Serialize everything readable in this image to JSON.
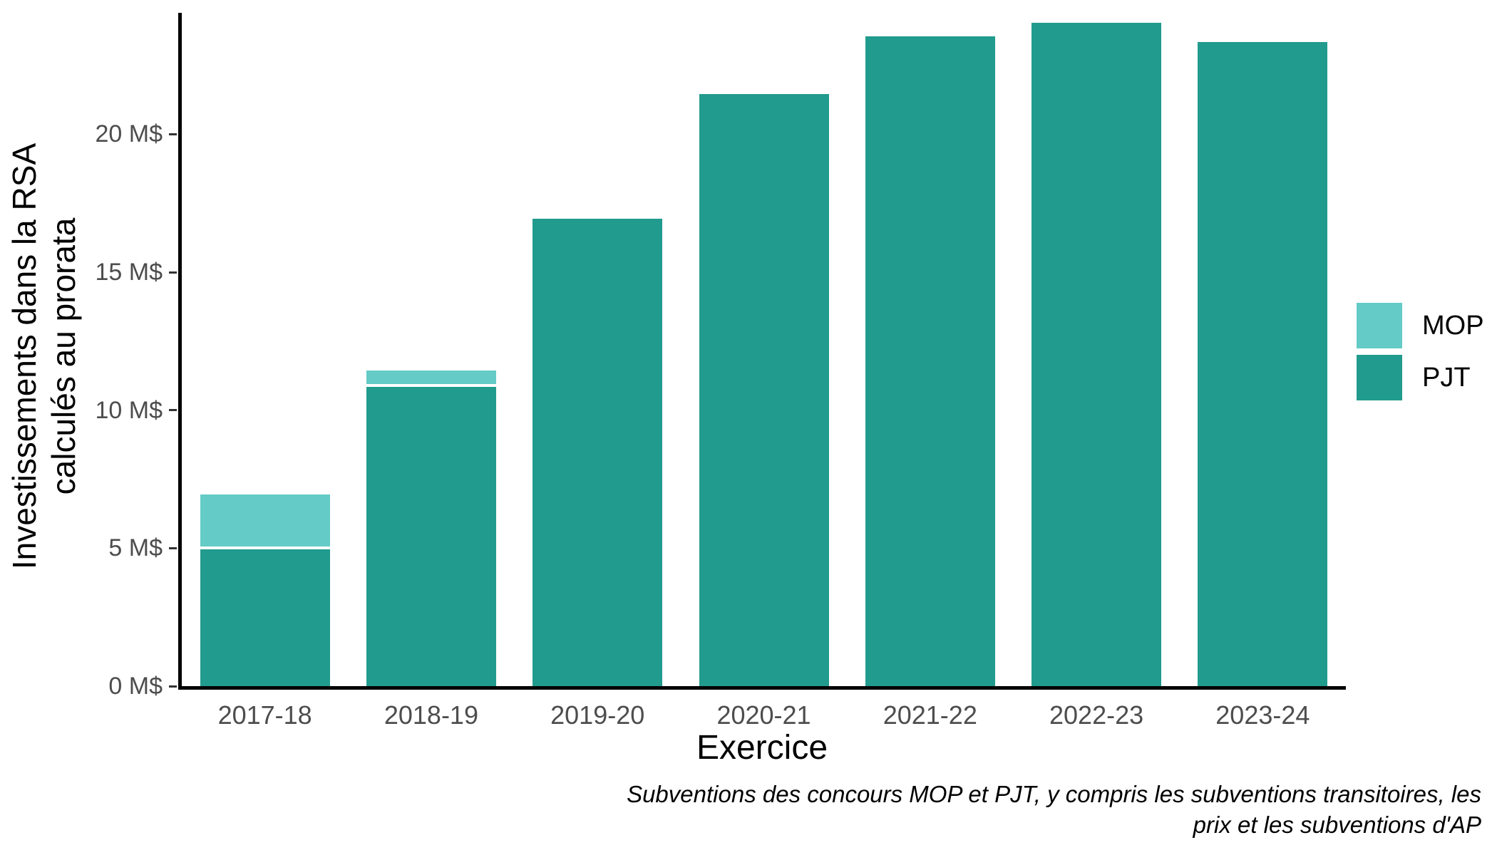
{
  "figure": {
    "background": "#ffffff"
  },
  "y_axis": {
    "title_line1": "Investissements dans la RSA",
    "title_line2": "calculés au prorata",
    "tick_values": [
      0,
      5,
      10,
      15,
      20
    ],
    "tick_labels": [
      "0 M$",
      "5 M$",
      "10 M$",
      "15 M$",
      "20 M$"
    ]
  },
  "x_axis": {
    "title": "Exercice",
    "tick_labels": [
      "2017-18",
      "2018-19",
      "2019-20",
      "2020-21",
      "2021-22",
      "2022-23",
      "2023-24"
    ]
  },
  "legend": {
    "position": "right",
    "items": [
      {
        "label": "MOP",
        "color": "#64CBC6"
      },
      {
        "label": "PJT",
        "color": "#219B8D"
      }
    ]
  },
  "caption": {
    "line1": "Subventions des concours MOP et PJT, y compris les subventions transitoires, les",
    "line2": "prix et les subventions d'AP"
  },
  "colors": {
    "mop": "#64CBC6",
    "pjt": "#219B8D",
    "axis_text": "#4D4D4D",
    "axis_line": "#000000",
    "segment_outline": "#FFFFFF"
  },
  "chart_data": {
    "type": "bar",
    "stacked": true,
    "title": "",
    "xlabel": "Exercice",
    "ylabel": "Investissements dans la RSA calculés au prorata",
    "categories": [
      "2017-18",
      "2018-19",
      "2019-20",
      "2020-21",
      "2021-22",
      "2022-23",
      "2023-24"
    ],
    "series": [
      {
        "name": "PJT",
        "color": "#219B8D",
        "values": [
          5.0,
          10.9,
          17.0,
          21.5,
          23.6,
          24.1,
          23.4
        ]
      },
      {
        "name": "MOP",
        "color": "#64CBC6",
        "values": [
          2.0,
          0.6,
          0.1,
          0.0,
          0.0,
          0.0,
          0.0
        ]
      }
    ],
    "totals": [
      7.0,
      11.5,
      17.1,
      21.5,
      23.6,
      24.1,
      23.4
    ],
    "ylim": [
      0,
      24.4
    ],
    "ytick_format": "{v} M$",
    "grid": false,
    "legend_position": "right",
    "caption": "Subventions des concours MOP et PJT, y compris les subventions transitoires, les prix et les subventions d'AP"
  }
}
